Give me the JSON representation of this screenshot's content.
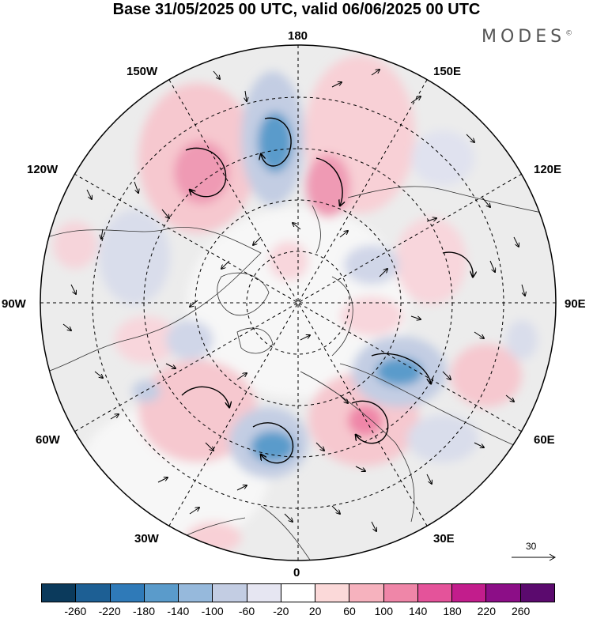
{
  "header": {
    "title": "Base 31/05/2025 00 UTC, valid 06/06/2025 00 UTC",
    "brand": "MODES"
  },
  "map": {
    "projection": "north-polar-stereographic",
    "longitude_labels": {
      "top": "180",
      "bottom": "0",
      "left": "90W",
      "right": "90E",
      "upper_left_1": "150W",
      "upper_left_2": "120W",
      "upper_right_1": "150E",
      "upper_right_2": "120E",
      "lower_left_1": "60W",
      "lower_left_2": "30W",
      "lower_right_1": "60E",
      "lower_right_2": "30E"
    },
    "reference_vector_label": "30"
  },
  "colorbar": {
    "tick_labels": [
      "-260",
      "-220",
      "-180",
      "-140",
      "-100",
      "-60",
      "-20",
      "20",
      "60",
      "100",
      "140",
      "180",
      "220",
      "260"
    ],
    "colors": [
      "#0b3a5c",
      "#1d5f94",
      "#2f7ab8",
      "#5a9bcb",
      "#96b9dc",
      "#c3cde3",
      "#e6e6f2",
      "#ffffff",
      "#fbd9d9",
      "#f6b2be",
      "#ef86a8",
      "#e4539a",
      "#c21d8c",
      "#8c0e87",
      "#5b0a6e"
    ]
  }
}
